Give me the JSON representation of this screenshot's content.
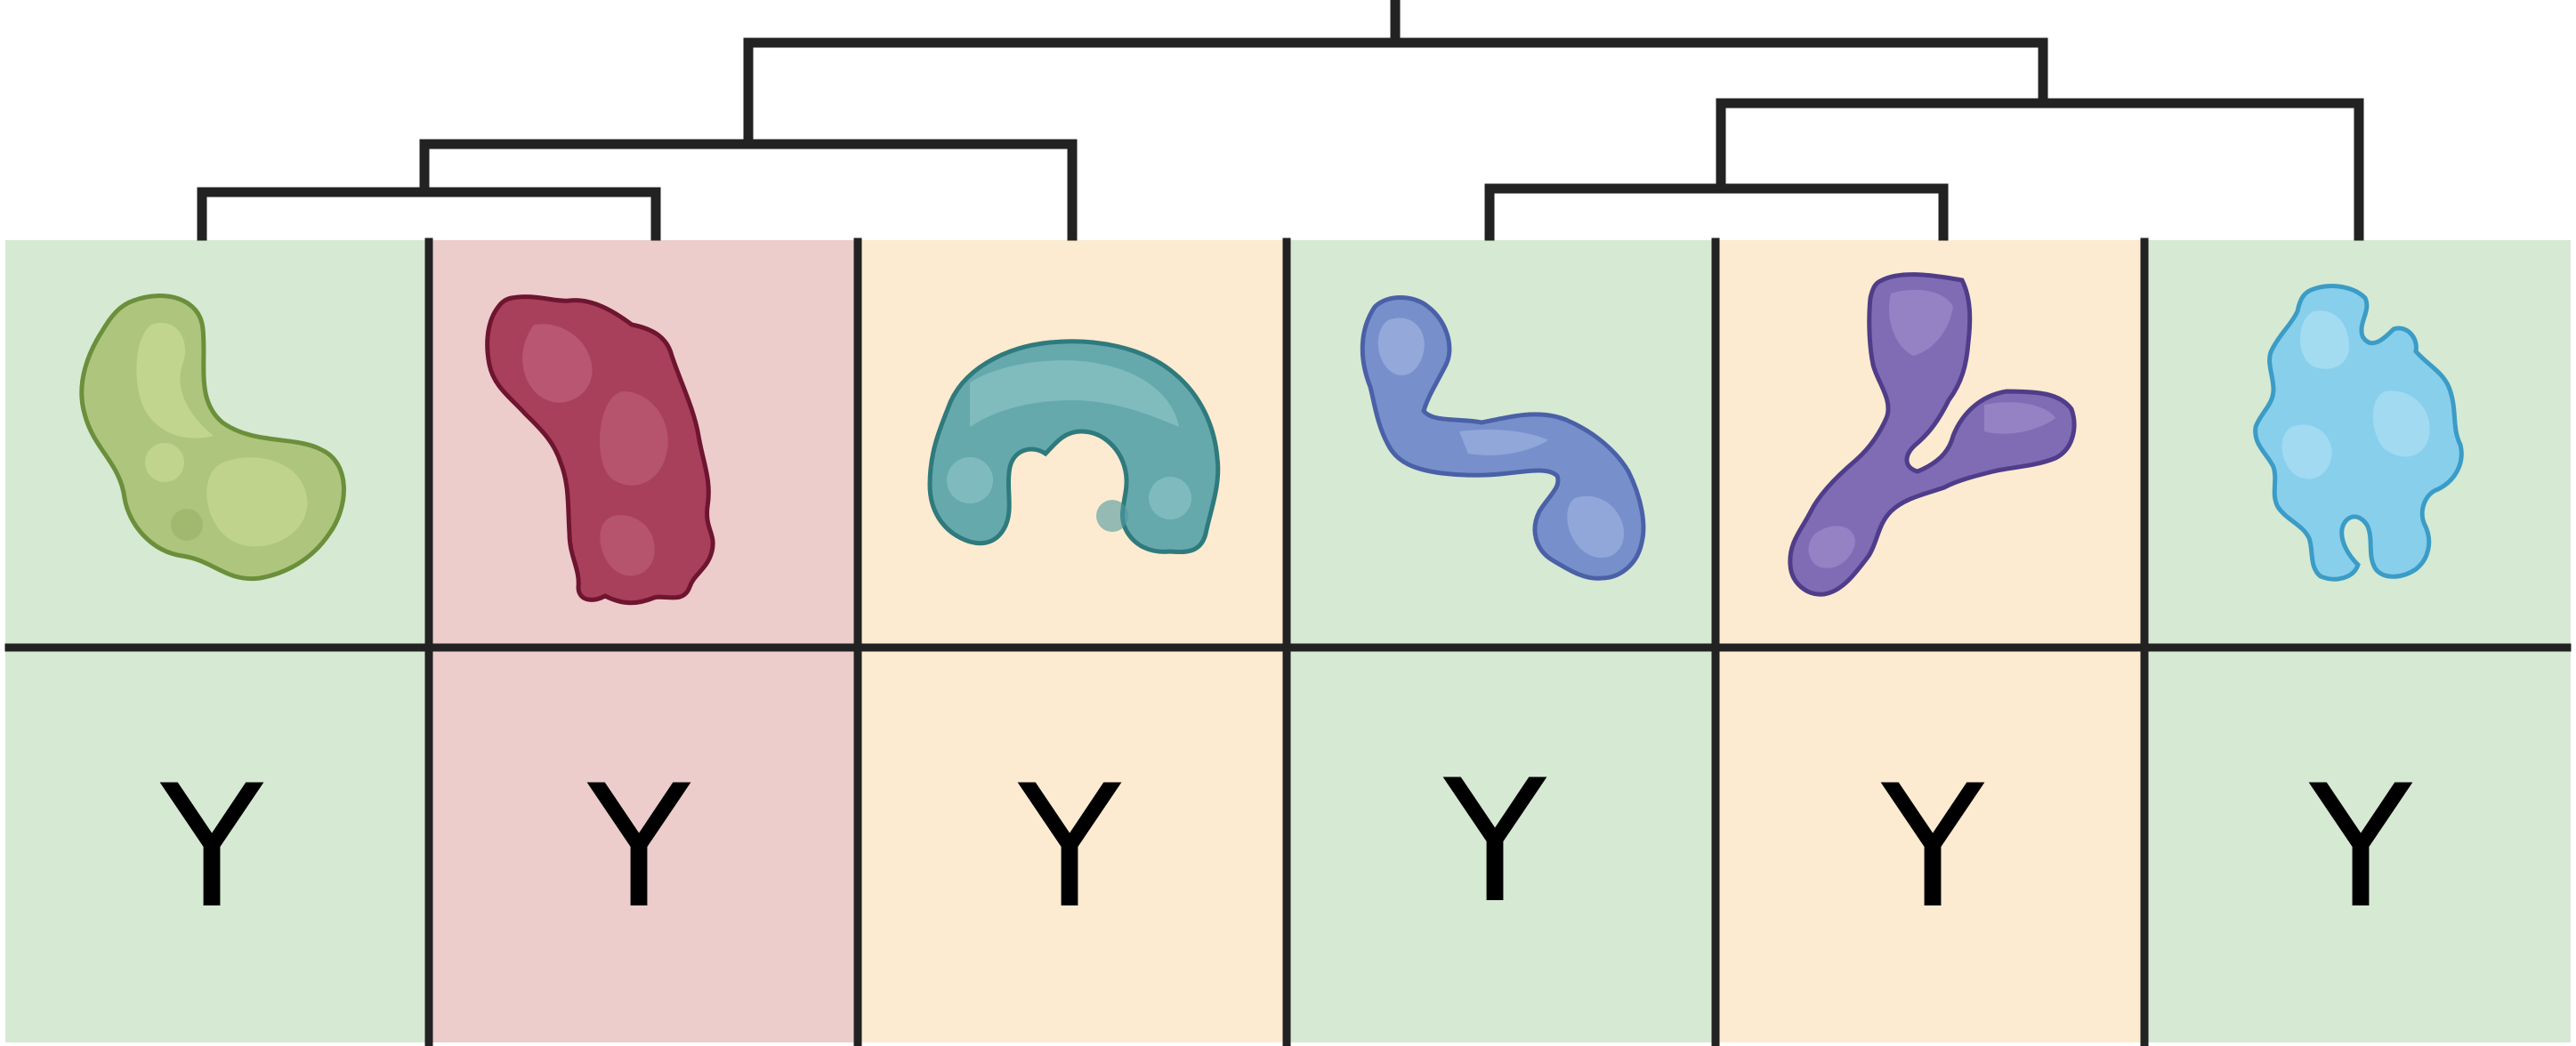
{
  "colors": {
    "line": "#222222",
    "cell_green": "#d6e9d3",
    "cell_pink": "#edcccc",
    "cell_cream": "#fcebd0",
    "background": "#ffffff"
  },
  "columns": [
    {
      "id": "c1",
      "cell_color": "#d6e9d3",
      "protein": {
        "shape": "kidney",
        "fill": "#aec57e",
        "fill_light": "#c4d792",
        "stroke": "#6b8f3a"
      },
      "label": "Y"
    },
    {
      "id": "c2",
      "cell_color": "#edcccc",
      "protein": {
        "shape": "bean",
        "fill": "#a8405b",
        "fill_light": "#c0607a",
        "stroke": "#6e1530"
      },
      "label": "Y"
    },
    {
      "id": "c3",
      "cell_color": "#fcebd0",
      "protein": {
        "shape": "horseshoe",
        "fill": "#65a9ad",
        "fill_light": "#8ac3c4",
        "stroke": "#2f7a7c"
      },
      "label": "Y"
    },
    {
      "id": "c4",
      "cell_color": "#d6e9d3",
      "protein": {
        "shape": "hook",
        "fill": "#7790cc",
        "fill_light": "#9db0de",
        "stroke": "#4a61a7"
      },
      "label": "Y"
    },
    {
      "id": "c5",
      "cell_color": "#fcebd0",
      "protein": {
        "shape": "branch",
        "fill": "#7f6cb5",
        "fill_light": "#9d8ccb",
        "stroke": "#4f3d8a"
      },
      "label": "Y"
    },
    {
      "id": "c6",
      "cell_color": "#d6e9d3",
      "protein": {
        "shape": "blob",
        "fill": "#88cfec",
        "fill_light": "#aadef3",
        "stroke": "#3b9cc6"
      },
      "label": "Y"
    }
  ]
}
